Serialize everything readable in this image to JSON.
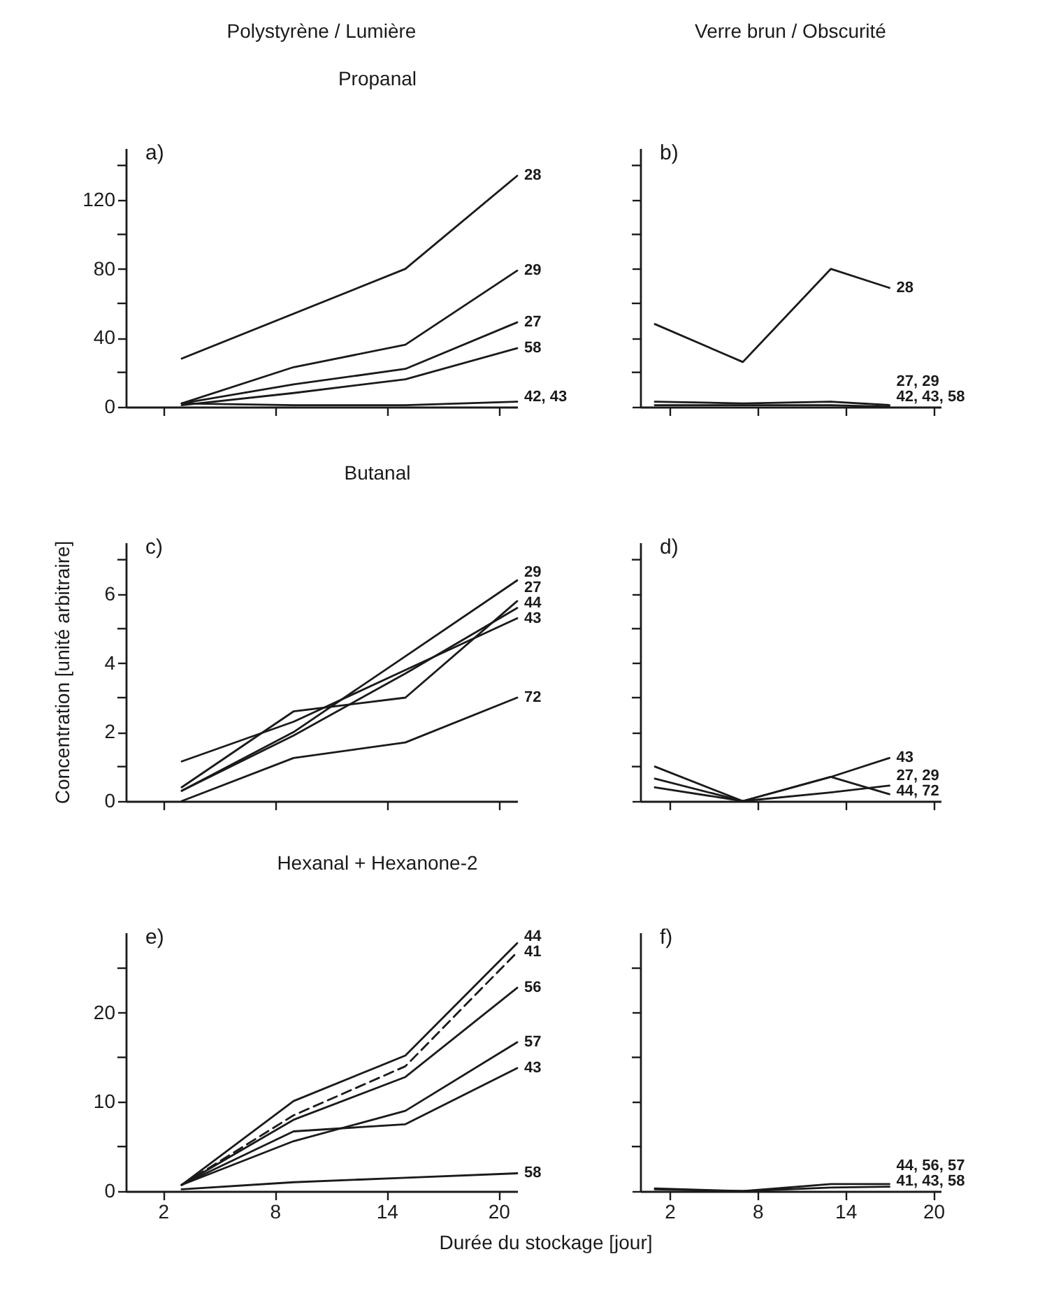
{
  "chart_data": [
    {
      "type": "line",
      "title": "Polystyrène / Lumière",
      "subtitle": "Propanal",
      "annotations": [
        "a)"
      ],
      "x": [
        3,
        9,
        15,
        21
      ],
      "xlim": [
        0,
        21
      ],
      "xticks": [
        2,
        8,
        14,
        20
      ],
      "ylim": [
        0,
        150
      ],
      "yticks": [
        0,
        {
          "value": 20,
          "label": null
        },
        40,
        {
          "value": 60,
          "label": null
        },
        80,
        {
          "value": 100,
          "label": null
        },
        120,
        {
          "value": 140,
          "label": null
        }
      ],
      "tick_labels": "y",
      "series": [
        {
          "name": "28",
          "color": "#1a1a1a",
          "x": [
            3,
            15,
            21
          ],
          "values": [
            28,
            80,
            134
          ]
        },
        {
          "name": "29",
          "color": "#1a1a1a",
          "values": [
            2,
            23,
            36,
            79
          ]
        },
        {
          "name": "27",
          "color": "#1a1a1a",
          "values": [
            2,
            13,
            22,
            49
          ]
        },
        {
          "name": "58",
          "color": "#1a1a1a",
          "values": [
            1,
            8,
            16,
            34
          ]
        },
        {
          "name": "42, 43",
          "color": "#1a1a1a",
          "values": [
            2,
            1,
            1,
            3
          ]
        }
      ]
    },
    {
      "type": "line",
      "title": "Verre brun / Obscurité",
      "annotations": [
        "b)"
      ],
      "x": [
        1,
        7,
        13,
        17
      ],
      "xlim": [
        0,
        20.5
      ],
      "xticks": [
        2,
        8,
        14,
        20
      ],
      "ylim": [
        0,
        150
      ],
      "yticks": [
        0,
        {
          "value": 20,
          "label": null
        },
        40,
        {
          "value": 60,
          "label": null
        },
        80,
        {
          "value": 100,
          "label": null
        },
        120,
        {
          "value": 140,
          "label": null
        }
      ],
      "tick_labels": false,
      "series": [
        {
          "name": "28",
          "color": "#1a1a1a",
          "values": [
            48,
            26,
            80,
            69
          ]
        },
        {
          "name": "27, 29",
          "color": "#1a1a1a",
          "values": [
            3,
            2,
            3,
            1
          ]
        },
        {
          "name": "42, 43, 58",
          "color": "#1a1a1a",
          "values": [
            1,
            1,
            1,
            0
          ]
        }
      ]
    },
    {
      "type": "line",
      "subtitle": "Butanal",
      "ylabel": "Concentration [unité arbitraire]",
      "annotations": [
        "c)"
      ],
      "x": [
        3,
        9,
        15,
        21
      ],
      "xlim": [
        0,
        21
      ],
      "xticks": [
        2,
        8,
        14,
        20
      ],
      "ylim": [
        0,
        7.5
      ],
      "yticks": [
        0,
        {
          "value": 1,
          "label": null
        },
        2,
        {
          "value": 3,
          "label": null
        },
        4,
        {
          "value": 5,
          "label": null
        },
        6,
        {
          "value": 7,
          "label": null
        }
      ],
      "tick_labels": "y",
      "series": [
        {
          "name": "29",
          "color": "#1a1a1a",
          "values": [
            0.3,
            2.0,
            4.2,
            6.4
          ]
        },
        {
          "name": "27",
          "color": "#1a1a1a",
          "values": [
            0.4,
            2.6,
            3.0,
            5.8
          ]
        },
        {
          "name": "44",
          "color": "#1a1a1a",
          "values": [
            0.3,
            1.9,
            3.7,
            5.6
          ]
        },
        {
          "name": "43",
          "color": "#1a1a1a",
          "values": [
            1.15,
            2.3,
            3.8,
            5.3
          ]
        },
        {
          "name": "72",
          "color": "#1a1a1a",
          "values": [
            0,
            1.25,
            1.7,
            3.0
          ]
        }
      ]
    },
    {
      "type": "line",
      "annotations": [
        "d)"
      ],
      "x": [
        1,
        7,
        13,
        17
      ],
      "xlim": [
        0,
        20.5
      ],
      "xticks": [
        2,
        8,
        14,
        20
      ],
      "ylim": [
        0,
        7.5
      ],
      "yticks": [
        0,
        {
          "value": 1,
          "label": null
        },
        2,
        {
          "value": 3,
          "label": null
        },
        4,
        {
          "value": 5,
          "label": null
        },
        6,
        {
          "value": 7,
          "label": null
        }
      ],
      "tick_labels": false,
      "series": [
        {
          "name": "43",
          "color": "#1a1a1a",
          "values": [
            0.4,
            0,
            0.7,
            1.25
          ]
        },
        {
          "name": "27, 29",
          "color": "#1a1a1a",
          "values": [
            0.65,
            0,
            0.25,
            0.45
          ]
        },
        {
          "name": "44, 72",
          "color": "#1a1a1a",
          "values": [
            1.0,
            0,
            0.7,
            0.2
          ]
        }
      ]
    },
    {
      "type": "line",
      "subtitle": "Hexanal + Hexanone-2",
      "xlabel": "Durée du stockage [jour]",
      "annotations": [
        "e)"
      ],
      "x": [
        3,
        9,
        15,
        21
      ],
      "xlim": [
        0,
        21
      ],
      "xticks": [
        2,
        8,
        14,
        20
      ],
      "ylim": [
        0,
        29
      ],
      "yticks": [
        0,
        {
          "value": 5,
          "label": null
        },
        10,
        {
          "value": 15,
          "label": null
        },
        20,
        {
          "value": 25,
          "label": null
        }
      ],
      "series": [
        {
          "name": "44",
          "color": "#1a1a1a",
          "values": [
            0.7,
            10.1,
            15.2,
            27.8
          ]
        },
        {
          "name": "41",
          "color": "#1a1a1a",
          "line_style": "dashed",
          "values": [
            0.7,
            8.5,
            14,
            26.8
          ]
        },
        {
          "name": "56",
          "color": "#1a1a1a",
          "values": [
            0.7,
            8,
            12.8,
            22.8
          ]
        },
        {
          "name": "57",
          "color": "#1a1a1a",
          "values": [
            0.7,
            5.6,
            9,
            16.7
          ]
        },
        {
          "name": "43",
          "color": "#1a1a1a",
          "values": [
            0.7,
            6.7,
            7.5,
            13.8
          ]
        },
        {
          "name": "58",
          "color": "#1a1a1a",
          "values": [
            0.2,
            1.0,
            1.5,
            2.0
          ]
        }
      ]
    },
    {
      "type": "line",
      "annotations": [
        "f)"
      ],
      "x": [
        1,
        7,
        13,
        17
      ],
      "xlim": [
        0,
        20.5
      ],
      "xticks": [
        2,
        8,
        14,
        20
      ],
      "ylim": [
        0,
        29
      ],
      "yticks": [
        0,
        {
          "value": 5,
          "label": null
        },
        10,
        {
          "value": 15,
          "label": null
        },
        20,
        {
          "value": 25,
          "label": null
        }
      ],
      "tick_labels": "x",
      "series": [
        {
          "name": "44, 56, 57",
          "color": "#1a1a1a",
          "values": [
            0.3,
            0,
            0.8,
            0.8
          ]
        },
        {
          "name": "41, 43, 58",
          "color": "#1a1a1a",
          "values": [
            0.2,
            0,
            0.4,
            0.5
          ]
        }
      ]
    }
  ]
}
